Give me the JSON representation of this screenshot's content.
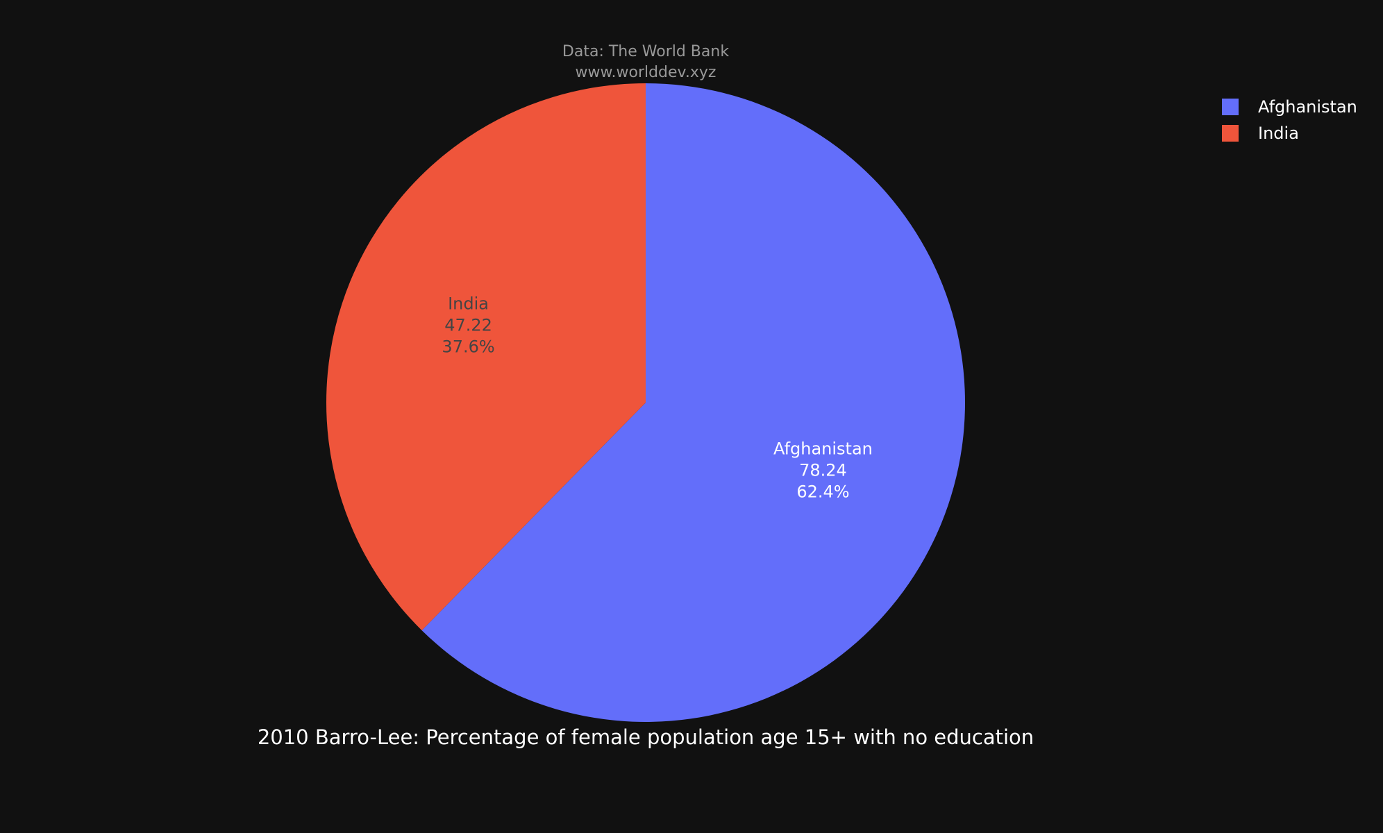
{
  "chart_data": {
    "type": "pie",
    "title": "2010 Barro-Lee: Percentage of female population age 15+ with no education",
    "source_line1": "Data: The World Bank",
    "source_line2": "www.worlddev.xyz",
    "labels": [
      "Afghanistan",
      "India"
    ],
    "values": [
      78.24,
      47.22
    ],
    "percent_labels": [
      "62.4%",
      "37.6%"
    ],
    "colors": [
      "#636efa",
      "#ef553b"
    ],
    "label_colors": [
      "#ffffff",
      "#444444"
    ],
    "legend_placement": "top-right",
    "direction": "clockwise",
    "start_angle_deg": 0
  },
  "legend": {
    "items": [
      {
        "label": "Afghanistan",
        "color": "#636efa"
      },
      {
        "label": "India",
        "color": "#ef553b"
      }
    ]
  }
}
